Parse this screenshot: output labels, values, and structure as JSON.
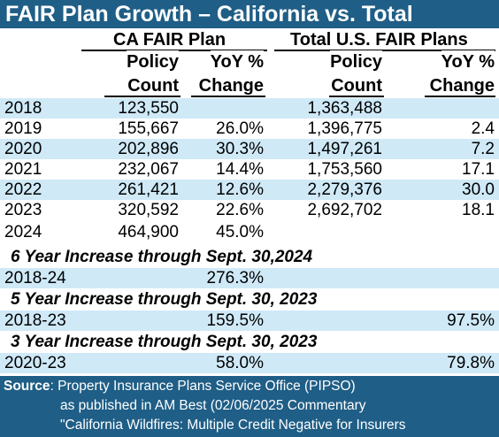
{
  "chart_data": {
    "type": "table",
    "title": "FAIR Plan Growth – California vs. Total",
    "group_headers": [
      "CA FAIR Plan",
      "Total U.S. FAIR Plans"
    ],
    "column_headers": [
      {
        "line1": "Policy",
        "line2": "Count"
      },
      {
        "line1": "YoY %",
        "line2": "Change"
      },
      {
        "line1": "Policy",
        "line2": "Count"
      },
      {
        "line1": "YoY %",
        "line2": "Change"
      }
    ],
    "rows": [
      {
        "year": "2018",
        "ca_count": "123,550",
        "ca_yoy": "",
        "us_count": "1,363,488",
        "us_yoy": ""
      },
      {
        "year": "2019",
        "ca_count": "155,667",
        "ca_yoy": "26.0%",
        "us_count": "1,396,775",
        "us_yoy": "2.4"
      },
      {
        "year": "2020",
        "ca_count": "202,896",
        "ca_yoy": "30.3%",
        "us_count": "1,497,261",
        "us_yoy": "7.2"
      },
      {
        "year": "2021",
        "ca_count": "232,067",
        "ca_yoy": "14.4%",
        "us_count": "1,753,560",
        "us_yoy": "17.1"
      },
      {
        "year": "2022",
        "ca_count": "261,421",
        "ca_yoy": "12.6%",
        "us_count": "2,279,376",
        "us_yoy": "30.0"
      },
      {
        "year": "2023",
        "ca_count": "320,592",
        "ca_yoy": "22.6%",
        "us_count": "2,692,702",
        "us_yoy": "18.1"
      },
      {
        "year": "2024",
        "ca_count": "464,900",
        "ca_yoy": "45.0%",
        "us_count": "",
        "us_yoy": ""
      }
    ],
    "sections": [
      {
        "heading": "6 Year Increase through Sept. 30,2024",
        "period": "2018-24",
        "ca": "276.3%",
        "us": ""
      },
      {
        "heading": "5 Year Increase through Sept. 30, 2023",
        "period": "2018-23",
        "ca": "159.5%",
        "us": "97.5%"
      },
      {
        "heading": "3 Year Increase through Sept. 30, 2023",
        "period": "2020-23",
        "ca": "58.0%",
        "us": "79.8%"
      }
    ],
    "source": {
      "label": "Source",
      "line1": ": Property Insurance Plans Service Office (PIPSO)",
      "line2": "as published in AM Best (02/06/2025 Commentary",
      "line3": "\"California Wildfires: Multiple Credit Negative for Insurers"
    },
    "colors": {
      "header_bg": "#1f5e86",
      "band": "#cfe9f7",
      "white": "#ffffff"
    }
  }
}
